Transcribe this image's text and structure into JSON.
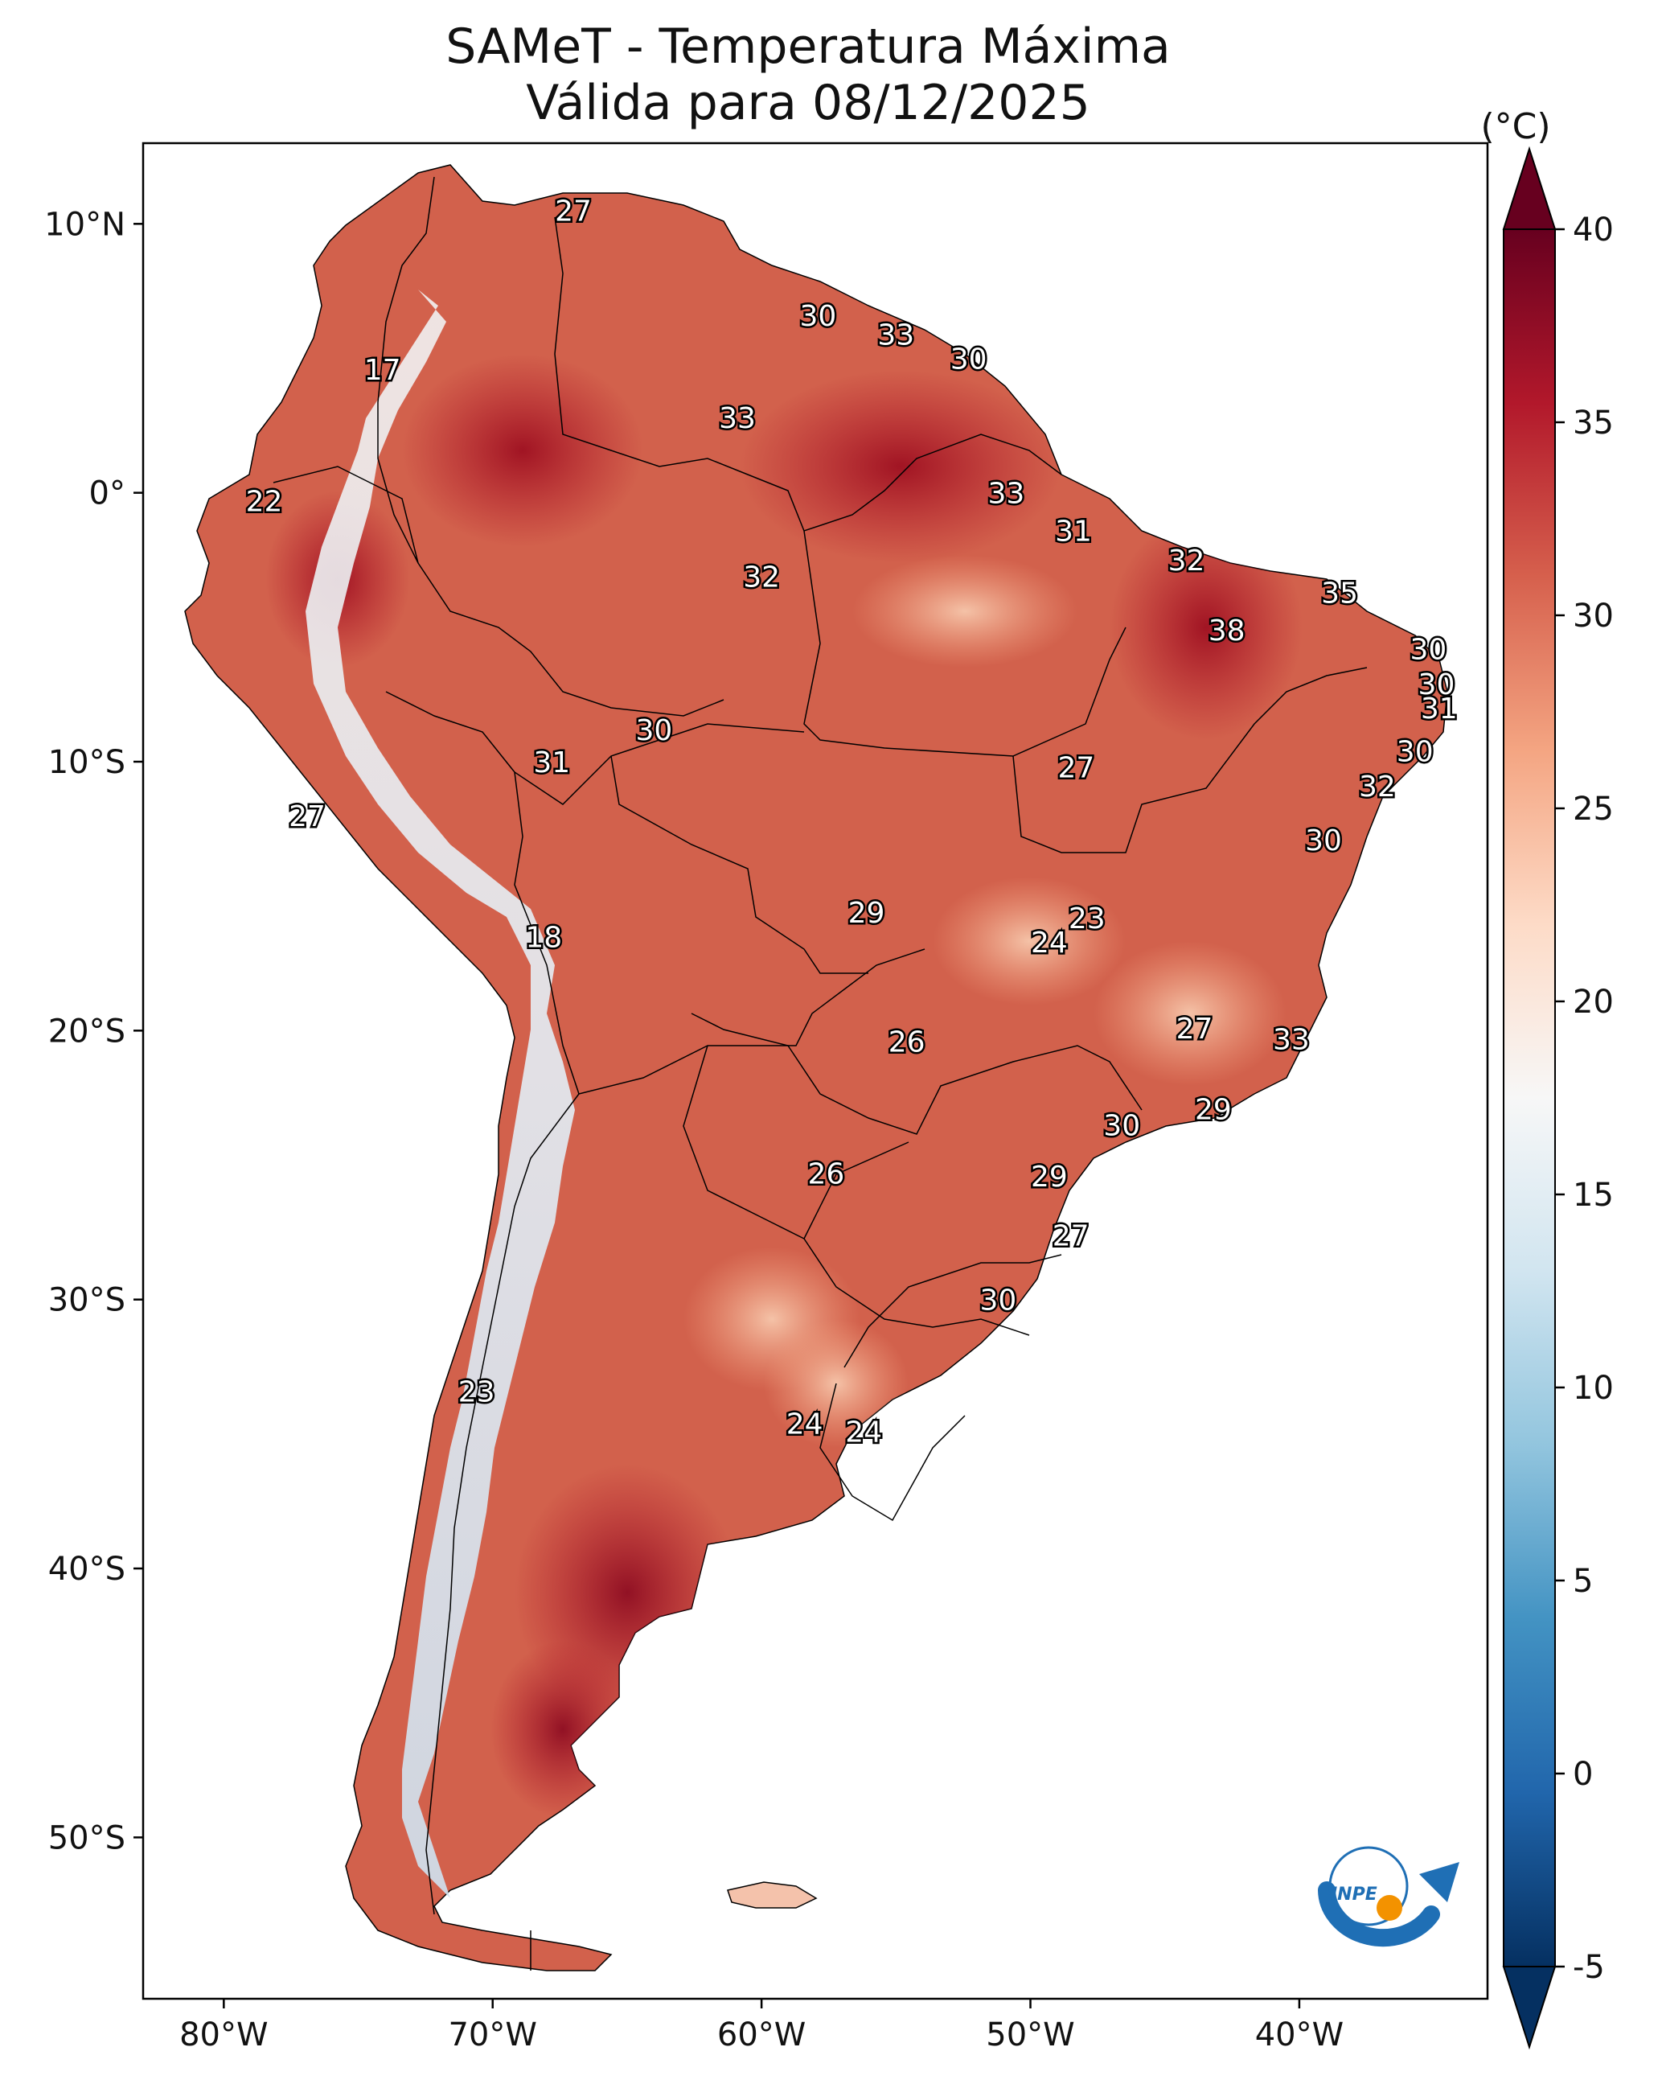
{
  "title": {
    "line1": "SAMeT - Temperatura Máxima",
    "line2": "Válida para 08/12/2025"
  },
  "map": {
    "lat_range": [
      -56,
      13
    ],
    "lon_range": [
      -83,
      -33
    ],
    "lat_ticks": [
      {
        "value": 10,
        "label": "10°N"
      },
      {
        "value": 0,
        "label": "0°"
      },
      {
        "value": -10,
        "label": "10°S"
      },
      {
        "value": -20,
        "label": "20°S"
      },
      {
        "value": -30,
        "label": "30°S"
      },
      {
        "value": -40,
        "label": "40°S"
      },
      {
        "value": -50,
        "label": "50°S"
      }
    ],
    "lon_ticks": [
      {
        "value": -80,
        "label": "80°W"
      },
      {
        "value": -70,
        "label": "70°W"
      },
      {
        "value": -60,
        "label": "60°W"
      },
      {
        "value": -50,
        "label": "50°W"
      },
      {
        "value": -40,
        "label": "40°W"
      }
    ],
    "labels": [
      {
        "text": "27",
        "lon": -67,
        "lat": 10.5
      },
      {
        "text": "30",
        "lon": -57.9,
        "lat": 6.6
      },
      {
        "text": "33",
        "lon": -55,
        "lat": 5.9
      },
      {
        "text": "30",
        "lon": -52.3,
        "lat": 5.0
      },
      {
        "text": "17",
        "lon": -74.1,
        "lat": 4.6
      },
      {
        "text": "33",
        "lon": -60.9,
        "lat": 2.8
      },
      {
        "text": "33",
        "lon": -50.9,
        "lat": 0.0
      },
      {
        "text": "22",
        "lon": -78.5,
        "lat": -0.3
      },
      {
        "text": "31",
        "lon": -48.4,
        "lat": -1.4
      },
      {
        "text": "32",
        "lon": -44.2,
        "lat": -2.5
      },
      {
        "text": "32",
        "lon": -60.0,
        "lat": -3.1
      },
      {
        "text": "35",
        "lon": -38.5,
        "lat": -3.7
      },
      {
        "text": "38",
        "lon": -42.7,
        "lat": -5.1
      },
      {
        "text": "30",
        "lon": -35.2,
        "lat": -5.8
      },
      {
        "text": "30",
        "lon": -34.9,
        "lat": -7.1
      },
      {
        "text": "31",
        "lon": -34.8,
        "lat": -8.0
      },
      {
        "text": "30",
        "lon": -64.0,
        "lat": -8.8
      },
      {
        "text": "30",
        "lon": -35.7,
        "lat": -9.6
      },
      {
        "text": "31",
        "lon": -67.8,
        "lat": -10.0
      },
      {
        "text": "27",
        "lon": -48.3,
        "lat": -10.2
      },
      {
        "text": "32",
        "lon": -37.1,
        "lat": -10.9
      },
      {
        "text": "27",
        "lon": -76.9,
        "lat": -12.0
      },
      {
        "text": "30",
        "lon": -39.1,
        "lat": -12.9
      },
      {
        "text": "29",
        "lon": -56.1,
        "lat": -15.6
      },
      {
        "text": "23",
        "lon": -47.9,
        "lat": -15.8
      },
      {
        "text": "24",
        "lon": -49.3,
        "lat": -16.7
      },
      {
        "text": "18",
        "lon": -68.1,
        "lat": -16.5
      },
      {
        "text": "27",
        "lon": -43.9,
        "lat": -19.9
      },
      {
        "text": "33",
        "lon": -40.3,
        "lat": -20.3
      },
      {
        "text": "26",
        "lon": -54.6,
        "lat": -20.4
      },
      {
        "text": "29",
        "lon": -43.2,
        "lat": -22.9
      },
      {
        "text": "30",
        "lon": -46.6,
        "lat": -23.5
      },
      {
        "text": "26",
        "lon": -57.6,
        "lat": -25.3
      },
      {
        "text": "29",
        "lon": -49.3,
        "lat": -25.4
      },
      {
        "text": "27",
        "lon": -48.5,
        "lat": -27.6
      },
      {
        "text": "30",
        "lon": -51.2,
        "lat": -30.0
      },
      {
        "text": "23",
        "lon": -70.6,
        "lat": -33.4
      },
      {
        "text": "24",
        "lon": -58.4,
        "lat": -34.6
      },
      {
        "text": "24",
        "lon": -56.2,
        "lat": -34.9
      }
    ]
  },
  "colorbar": {
    "unit": "(°C)",
    "range": [
      -5,
      40
    ],
    "ticks": [
      "40",
      "35",
      "30",
      "25",
      "20",
      "15",
      "10",
      "5",
      "0",
      "-5"
    ],
    "stops": [
      "#053061",
      "#2166ac",
      "#4393c3",
      "#92c5de",
      "#d1e5f0",
      "#f7f7f7",
      "#fddbc7",
      "#f4a582",
      "#d6604d",
      "#b2182b",
      "#67001f"
    ]
  },
  "logo": {
    "text": "INPE"
  }
}
